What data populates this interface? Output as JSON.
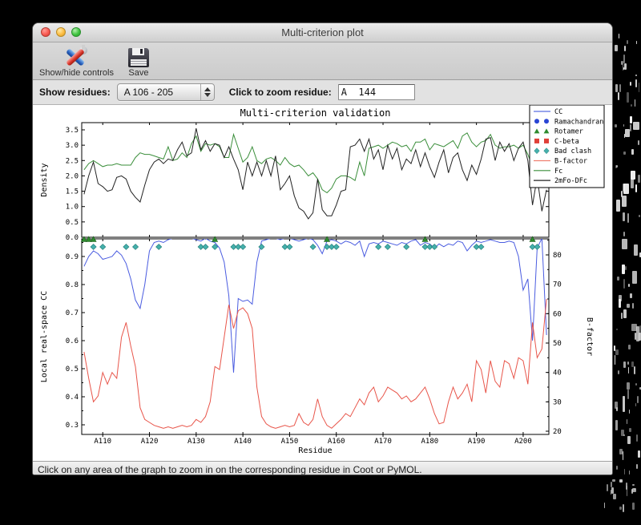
{
  "window": {
    "title": "Multi-criterion plot"
  },
  "toolbar": {
    "buttons": [
      {
        "label": "Show/hide controls"
      },
      {
        "label": "Save"
      }
    ]
  },
  "controls": {
    "show_residues_label": "Show residues:",
    "range_value": "A 106 - 205",
    "zoom_label": "Click to zoom residue:",
    "zoom_value": "A  144"
  },
  "statusbar": {
    "message": "Click on any area of the graph to zoom in on the corresponding residue in Coot or PyMOL."
  },
  "chart_data": {
    "type": "line",
    "title": "Multi-criterion validation",
    "xlabel": "Residue",
    "xlim": [
      105.5,
      205.5
    ],
    "x_start": 106,
    "xtick_values": [
      110,
      120,
      130,
      140,
      150,
      160,
      170,
      180,
      190,
      200
    ],
    "xtick_labels": [
      "A110",
      "A120",
      "A130",
      "A140",
      "A150",
      "A160",
      "A170",
      "A180",
      "A190",
      "A200"
    ],
    "top_panel": {
      "ylabel": "Density",
      "ylim": [
        0.0,
        3.73
      ],
      "ytick_labels": [
        "0.0",
        "0.5",
        "1.0",
        "1.5",
        "2.0",
        "2.5",
        "3.0",
        "3.5"
      ],
      "ytick_values": [
        0.0,
        0.5,
        1.0,
        1.5,
        2.0,
        2.5,
        3.0,
        3.5
      ],
      "series": [
        {
          "name": "Fc",
          "color": "#3a8e3a",
          "values": [
            2.2,
            2.4,
            2.5,
            2.4,
            2.3,
            2.35,
            2.35,
            2.4,
            2.35,
            2.35,
            2.35,
            2.6,
            2.75,
            2.7,
            2.7,
            2.65,
            2.6,
            2.55,
            2.95,
            2.5,
            2.55,
            2.75,
            2.6,
            3.05,
            3.3,
            2.8,
            3.05,
            3.0,
            3.05,
            2.95,
            2.6,
            2.6,
            3.35,
            2.9,
            2.45,
            2.6,
            2.95,
            2.5,
            2.4,
            2.55,
            2.6,
            2.5,
            2.35,
            2.6,
            2.4,
            2.3,
            2.35,
            2.2,
            2.0,
            2.1,
            1.9,
            1.55,
            1.45,
            1.6,
            1.9,
            2.0,
            2.0,
            1.95,
            1.85,
            2.45,
            2.0,
            2.9,
            2.95,
            3.0,
            2.9,
            3.0,
            3.1,
            3.05,
            2.95,
            3.0,
            2.8,
            3.1,
            3.1,
            3.2,
            2.85,
            3.05,
            3.0,
            2.95,
            3.05,
            3.15,
            2.9,
            3.3,
            3.4,
            3.1,
            2.95,
            3.1,
            3.15,
            3.35,
            3.0,
            2.9,
            2.95,
            2.95,
            3.0,
            2.9,
            3.0,
            2.7,
            2.3,
            2.05,
            2.45,
            2.3
          ]
        },
        {
          "name": "2mFo-DFc",
          "color": "#222222",
          "values": [
            1.4,
            2.0,
            2.45,
            1.75,
            1.65,
            1.5,
            1.55,
            1.95,
            2.0,
            1.9,
            1.5,
            1.3,
            1.15,
            1.7,
            2.2,
            2.45,
            2.55,
            2.4,
            2.55,
            2.5,
            2.85,
            3.1,
            2.65,
            2.75,
            3.55,
            2.85,
            3.15,
            2.8,
            3.05,
            3.0,
            2.6,
            2.95,
            2.55,
            2.2,
            1.55,
            2.45,
            2.0,
            2.45,
            2.0,
            2.5,
            2.0,
            2.65,
            1.55,
            1.75,
            2.0,
            1.35,
            0.95,
            0.85,
            0.6,
            0.8,
            1.9,
            0.9,
            0.7,
            0.7,
            1.05,
            1.5,
            1.55,
            2.95,
            3.0,
            3.2,
            2.8,
            3.2,
            2.55,
            2.85,
            2.2,
            3.0,
            2.55,
            2.9,
            2.2,
            2.55,
            2.4,
            2.85,
            2.3,
            2.75,
            2.3,
            1.95,
            2.45,
            2.85,
            2.1,
            2.6,
            2.75,
            2.2,
            1.85,
            2.35,
            2.05,
            2.55,
            3.2,
            3.25,
            2.5,
            3.1,
            2.8,
            3.05,
            2.5,
            2.9,
            3.1,
            2.5,
            1.05,
            1.95,
            0.85,
            1.55
          ]
        }
      ]
    },
    "bottom_panel": {
      "ylabel_left": "Local real-space CC",
      "ylabel_left_color": "#4a5ce0",
      "ylim_left": [
        0.266,
        0.963
      ],
      "ytick_labels_left": [
        "0.3",
        "0.4",
        "0.5",
        "0.6",
        "0.7",
        "0.8",
        "0.9"
      ],
      "ytick_values_left": [
        0.3,
        0.4,
        0.5,
        0.6,
        0.7,
        0.8,
        0.9
      ],
      "ylabel_right": "B-factor",
      "ylabel_right_color": "#e8554a",
      "ylim_right": [
        18.9,
        85.5
      ],
      "ytick_labels_right": [
        "20",
        "30",
        "40",
        "50",
        "60",
        "70",
        "80"
      ],
      "ytick_values_right": [
        20,
        30,
        40,
        50,
        60,
        70,
        80
      ],
      "series": [
        {
          "name": "CC",
          "axis": "left",
          "color": "#4a5ce0",
          "values": [
            0.865,
            0.9,
            0.92,
            0.91,
            0.89,
            0.895,
            0.9,
            0.92,
            0.905,
            0.875,
            0.82,
            0.745,
            0.715,
            0.8,
            0.92,
            0.95,
            0.955,
            0.95,
            0.96,
            0.965,
            0.965,
            0.97,
            0.965,
            0.965,
            0.96,
            0.955,
            0.965,
            0.955,
            0.95,
            0.93,
            0.88,
            0.76,
            0.486,
            0.75,
            0.74,
            0.745,
            0.73,
            0.88,
            0.955,
            0.96,
            0.965,
            0.965,
            0.96,
            0.965,
            0.965,
            0.96,
            0.955,
            0.96,
            0.965,
            0.96,
            0.94,
            0.91,
            0.955,
            0.96,
            0.955,
            0.945,
            0.955,
            0.95,
            0.94,
            0.955,
            0.9,
            0.945,
            0.95,
            0.945,
            0.955,
            0.95,
            0.945,
            0.94,
            0.95,
            0.945,
            0.955,
            0.96,
            0.94,
            0.95,
            0.945,
            0.93,
            0.945,
            0.935,
            0.945,
            0.94,
            0.955,
            0.95,
            0.92,
            0.94,
            0.955,
            0.95,
            0.955,
            0.96,
            0.955,
            0.95,
            0.95,
            0.955,
            0.95,
            0.9,
            0.78,
            0.82,
            0.6,
            0.93,
            0.965,
            0.62
          ]
        },
        {
          "name": "B-factor",
          "axis": "right",
          "color": "#e8554a",
          "values": [
            47,
            38,
            30,
            32,
            40,
            36,
            40,
            38,
            52,
            57,
            49,
            42,
            28,
            24,
            23,
            22,
            21.5,
            21,
            21.5,
            21,
            21.5,
            22,
            21.5,
            22,
            24,
            23,
            25,
            30,
            42,
            41,
            52,
            63,
            55,
            61,
            62,
            60,
            55,
            35,
            25,
            22.5,
            21.5,
            21,
            21.5,
            22,
            21.5,
            22,
            26,
            23,
            22,
            24,
            31,
            25,
            22,
            21,
            22.5,
            24,
            26,
            25,
            28,
            31,
            29,
            33,
            35,
            30,
            32,
            35,
            34,
            33,
            31,
            32,
            30,
            31,
            33,
            35,
            31,
            26,
            22.5,
            23,
            30,
            35,
            31,
            33,
            36,
            30,
            44,
            41,
            33,
            44,
            37,
            35,
            44,
            43,
            38,
            45,
            44,
            36,
            57,
            45,
            48,
            65
          ]
        }
      ],
      "markers": [
        {
          "name": "Rotamer",
          "shape": "triangle",
          "color": "#2e8b2e",
          "edge": "#1d5c1d",
          "residues": [
            106,
            107,
            108,
            134,
            158,
            179,
            202
          ]
        },
        {
          "name": "Bad clash",
          "shape": "diamond",
          "color": "#45b0ac",
          "edge": "#1f7a74",
          "residues": [
            108,
            110,
            115,
            117,
            122,
            131,
            132,
            134,
            138,
            139,
            140,
            144,
            149,
            150,
            155,
            158,
            159,
            160,
            169,
            171,
            175,
            179,
            180,
            181,
            190,
            191,
            202,
            203
          ]
        }
      ]
    },
    "legend": {
      "position": "top-right",
      "entries": [
        {
          "label": "CC",
          "swatch": "line",
          "color": "#5a6fe0"
        },
        {
          "label": "Ramachandran",
          "swatch": "dots",
          "color": "#2a46d4"
        },
        {
          "label": "Rotamer",
          "swatch": "triangles",
          "color": "#2e8b2e"
        },
        {
          "label": "C-beta",
          "swatch": "squares",
          "color": "#e04038"
        },
        {
          "label": "Bad clash",
          "swatch": "diamonds",
          "color": "#45b0ac"
        },
        {
          "label": "B-factor",
          "swatch": "line",
          "color": "#f08070"
        },
        {
          "label": "Fc",
          "swatch": "line",
          "color": "#3a8e3a"
        },
        {
          "label": "2mFo-DFc",
          "swatch": "line",
          "color": "#222222"
        }
      ]
    }
  }
}
